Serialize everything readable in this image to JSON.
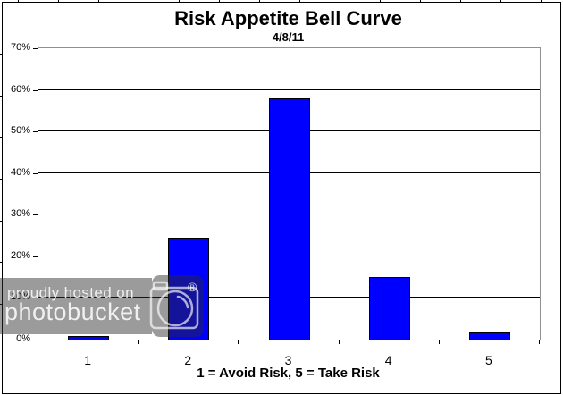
{
  "chart_data": {
    "type": "bar",
    "title": "Risk Appetite Bell Curve",
    "subtitle": "4/8/11",
    "xlabel": "1 = Avoid Risk, 5 = Take Risk",
    "ylabel": "",
    "categories": [
      "1",
      "2",
      "3",
      "4",
      "5"
    ],
    "values": [
      0.8,
      24.5,
      58,
      15,
      1.8
    ],
    "ylim": [
      0,
      70
    ],
    "ytick_step": 10,
    "ytick_labels": [
      "0%",
      "10%",
      "20%",
      "30%",
      "40%",
      "50%",
      "60%",
      "70%"
    ],
    "grid": true,
    "legend": "none",
    "bar_color": "#0000ff",
    "bar_border_color": "#000000",
    "gridline_color": "#000000",
    "plot_frame_color": "#909090",
    "axis_color": "#000000"
  },
  "watermark": {
    "line1": "proudly hosted on",
    "line2": "photobucket",
    "registered_mark": "®",
    "camera_icon": "camera-icon",
    "overlay_color": "rgba(42,42,42,0.47)",
    "text_color": "rgba(255,255,255,0.85)"
  }
}
